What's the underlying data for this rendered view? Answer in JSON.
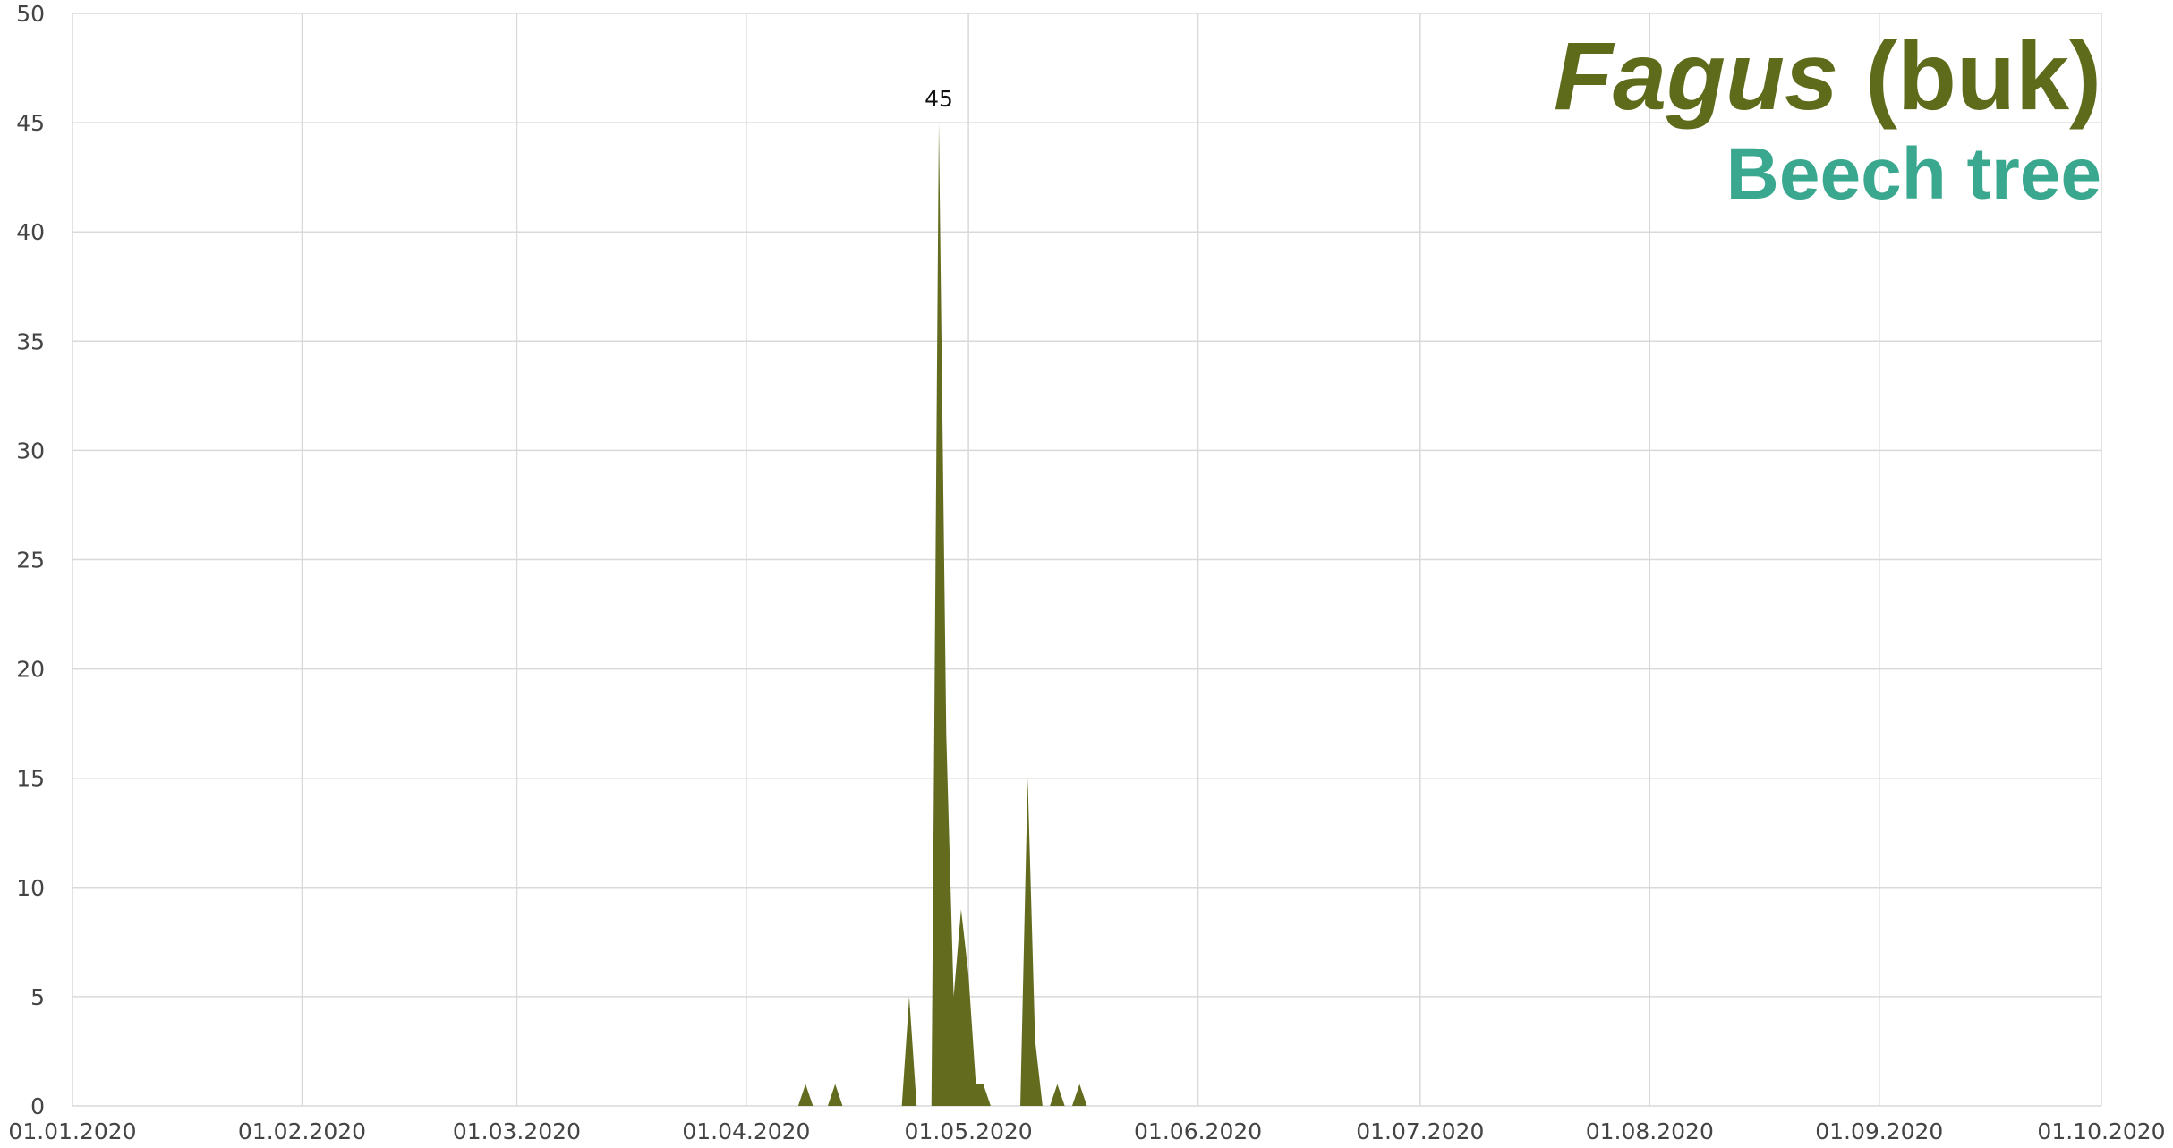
{
  "chart_data": {
    "type": "area",
    "title_genus": "Fagus",
    "title_local": "(buk)",
    "subtitle": "Beech tree",
    "x": [
      "05.04.2020",
      "06.04.2020",
      "07.04.2020",
      "08.04.2020",
      "09.04.2020",
      "10.04.2020",
      "11.04.2020",
      "12.04.2020",
      "13.04.2020",
      "14.04.2020",
      "15.04.2020",
      "16.04.2020",
      "17.04.2020",
      "18.04.2020",
      "19.04.2020",
      "20.04.2020",
      "21.04.2020",
      "22.04.2020",
      "23.04.2020",
      "24.04.2020",
      "25.04.2020",
      "26.04.2020",
      "27.04.2020",
      "28.04.2020",
      "29.04.2020",
      "30.04.2020",
      "01.05.2020",
      "02.05.2020",
      "03.05.2020",
      "04.05.2020",
      "05.05.2020",
      "06.05.2020",
      "07.05.2020",
      "08.05.2020",
      "09.05.2020",
      "10.05.2020",
      "11.05.2020",
      "12.05.2020",
      "13.05.2020",
      "14.05.2020",
      "15.05.2020",
      "16.05.2020",
      "17.05.2020",
      "18.05.2020",
      "19.05.2020",
      "20.05.2020"
    ],
    "series": [
      {
        "name": "Fagus",
        "color": "#636b1f",
        "values": [
          0,
          0,
          0,
          0,
          1,
          0,
          0,
          0,
          1,
          0,
          0,
          0,
          0,
          0,
          0,
          0,
          0,
          0,
          5,
          0,
          0,
          0,
          45,
          17,
          5,
          9,
          6,
          1,
          1,
          0,
          0,
          0,
          0,
          0,
          15,
          3,
          0,
          0,
          1,
          0,
          0,
          1,
          0,
          0,
          0,
          0
        ]
      }
    ],
    "label_max": true,
    "xlim": [
      "01.01.2020",
      "01.10.2020"
    ],
    "xticks": [
      "01.01.2020",
      "01.02.2020",
      "01.03.2020",
      "01.04.2020",
      "01.05.2020",
      "01.06.2020",
      "01.07.2020",
      "01.08.2020",
      "01.09.2020",
      "01.10.2020"
    ],
    "ylim": [
      0,
      50
    ],
    "yticks": [
      0,
      5,
      10,
      15,
      20,
      25,
      30,
      35,
      40,
      45,
      50
    ],
    "grid": true
  }
}
